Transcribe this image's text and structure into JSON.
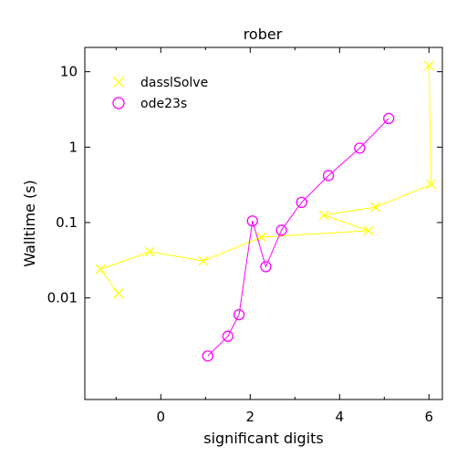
{
  "chart_data": {
    "type": "line",
    "title": "rober",
    "xlabel": "significant digits",
    "ylabel": "Walltime (s)",
    "xlim": [
      -1.7,
      6.3
    ],
    "ylim": [
      0.00045,
      21
    ],
    "yscale": "log",
    "x_ticks": [
      0,
      2,
      4,
      6
    ],
    "x_tick_labels": [
      "0",
      "2",
      "4",
      "6"
    ],
    "y_ticks": [
      0.01,
      0.1,
      1,
      10
    ],
    "y_tick_labels": [
      "0.01",
      "0.1",
      "1",
      "10"
    ],
    "grid": false,
    "legend_position": "top-left",
    "series": [
      {
        "name": "dasslSolve",
        "color": "#ffff00",
        "marker": "x",
        "points": [
          [
            6.0,
            12.0
          ],
          [
            6.05,
            0.32
          ],
          [
            4.8,
            0.16
          ],
          [
            3.65,
            0.125
          ],
          [
            4.65,
            0.078
          ],
          [
            2.25,
            0.064
          ],
          [
            0.95,
            0.031
          ],
          [
            -0.25,
            0.041
          ],
          [
            -1.35,
            0.024
          ],
          [
            -0.95,
            0.0115
          ]
        ]
      },
      {
        "name": "ode23s",
        "color": "#ff00ff",
        "marker": "o",
        "points": [
          [
            1.05,
            0.0017
          ],
          [
            1.5,
            0.0031
          ],
          [
            1.75,
            0.006
          ],
          [
            2.05,
            0.105
          ],
          [
            2.35,
            0.026
          ],
          [
            2.7,
            0.079
          ],
          [
            3.15,
            0.185
          ],
          [
            3.75,
            0.42
          ],
          [
            4.45,
            0.97
          ],
          [
            5.1,
            2.4
          ]
        ]
      }
    ]
  }
}
